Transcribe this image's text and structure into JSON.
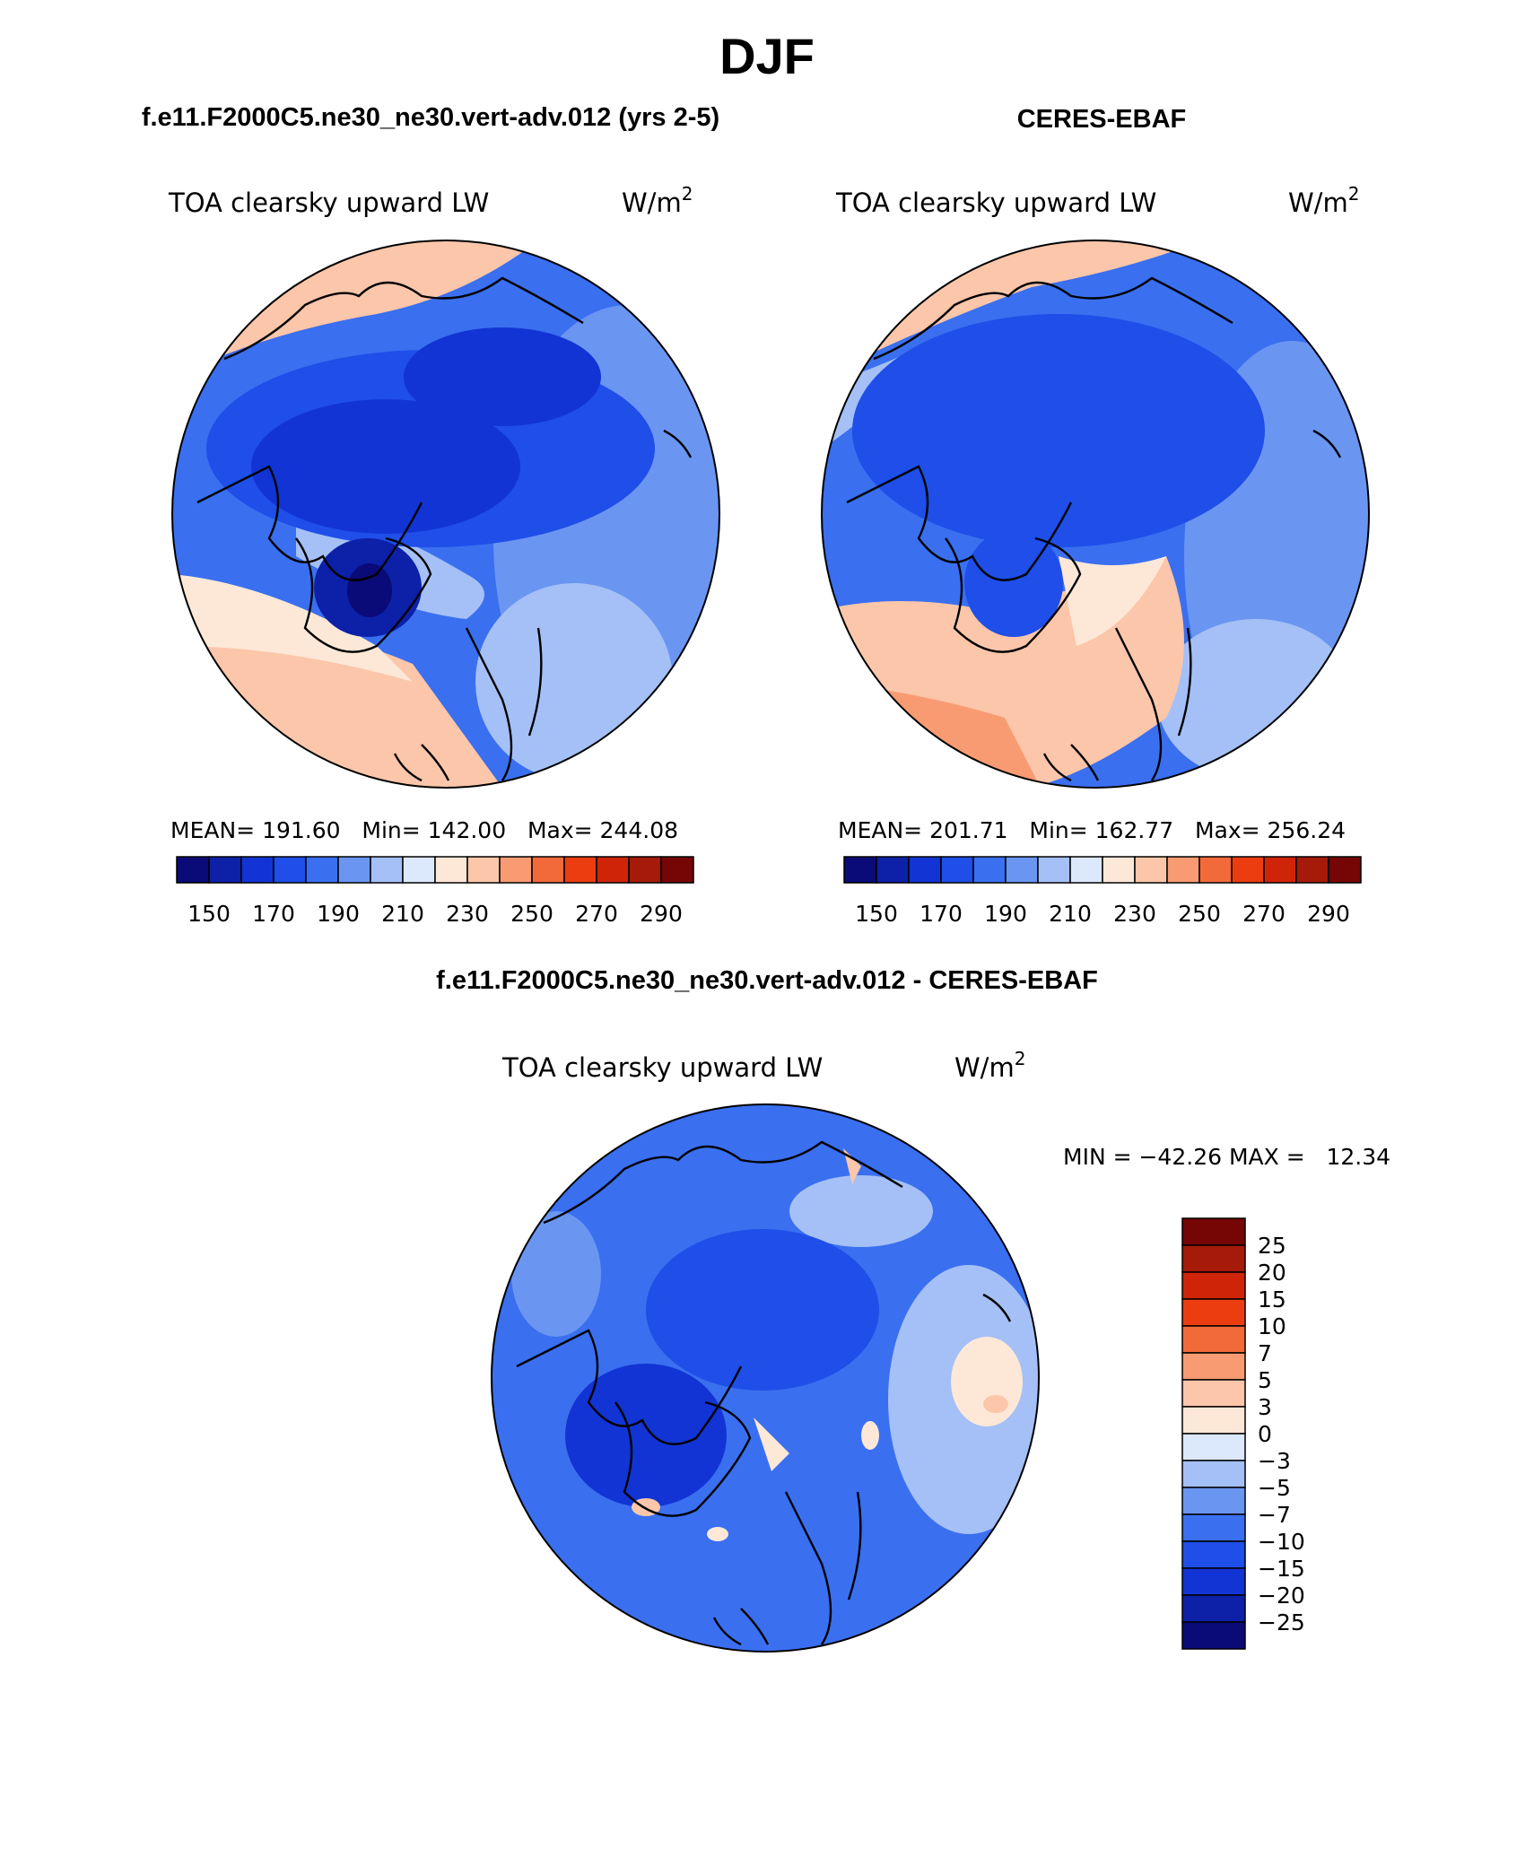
{
  "page": {
    "season": "DJF",
    "diff_title": "f.e11.F2000C5.ne30_ne30.vert-adv.012 - CERES-EBAF"
  },
  "panels": [
    {
      "id": "model",
      "header": "f.e11.F2000C5.ne30_ne30.vert-adv.012 (yrs 2-5)",
      "variable": "TOA clearsky upward LW",
      "units_base": "W/m",
      "units_exp": "2",
      "stats": "MEAN= 191.60   Min= 142.00   Max= 244.08"
    },
    {
      "id": "obs",
      "header": "CERES-EBAF",
      "variable": "TOA clearsky upward LW",
      "units_base": "W/m",
      "units_exp": "2",
      "stats": "MEAN= 201.71   Min= 162.77   Max= 256.24"
    },
    {
      "id": "diff",
      "variable": "TOA clearsky upward LW",
      "units_base": "W/m",
      "units_exp": "2",
      "stats": "MIN = −42.26 MAX =   12.34"
    }
  ],
  "abs_colorbar": {
    "colors": [
      "#0a0a78",
      "#0c20a8",
      "#1234d4",
      "#1f4ee8",
      "#3a6ff0",
      "#6a96f2",
      "#a4c0f6",
      "#dce8fb",
      "#fde8d8",
      "#fcc6aa",
      "#f89b72",
      "#f26a3a",
      "#ec3d10",
      "#d02408",
      "#a51a08",
      "#760505"
    ],
    "tick_labels": [
      "150",
      "170",
      "190",
      "210",
      "230",
      "250",
      "270",
      "290"
    ]
  },
  "diff_colorbar": {
    "colors": [
      "#760505",
      "#a51a08",
      "#d02408",
      "#ec3d10",
      "#f26a3a",
      "#f89b72",
      "#fcc6aa",
      "#fde8d8",
      "#dce8fb",
      "#a4c0f6",
      "#6a96f2",
      "#3a6ff0",
      "#1f4ee8",
      "#1234d4",
      "#0c20a8",
      "#0a0a78"
    ],
    "tick_labels": [
      "25",
      "20",
      "15",
      "10",
      "7",
      "5",
      "3",
      "0",
      "−3",
      "−5",
      "−7",
      "−10",
      "−15",
      "−20",
      "−25"
    ]
  },
  "chart_data": [
    {
      "type": "heatmap",
      "title": "f.e11.F2000C5.ne30_ne30.vert-adv.012 (yrs 2-5)",
      "variable": "TOA clearsky upward LW",
      "units": "W/m2",
      "season": "DJF",
      "projection": "north polar stereographic",
      "mean": 191.6,
      "min": 142.0,
      "max": 244.08,
      "levels": [
        150,
        160,
        170,
        180,
        190,
        200,
        210,
        220,
        230,
        240,
        250,
        260,
        270,
        280,
        290
      ]
    },
    {
      "type": "heatmap",
      "title": "CERES-EBAF",
      "variable": "TOA clearsky upward LW",
      "units": "W/m2",
      "season": "DJF",
      "projection": "north polar stereographic",
      "mean": 201.71,
      "min": 162.77,
      "max": 256.24,
      "levels": [
        150,
        160,
        170,
        180,
        190,
        200,
        210,
        220,
        230,
        240,
        250,
        260,
        270,
        280,
        290
      ]
    },
    {
      "type": "heatmap",
      "title": "f.e11.F2000C5.ne30_ne30.vert-adv.012 - CERES-EBAF",
      "variable": "TOA clearsky upward LW",
      "units": "W/m2",
      "season": "DJF",
      "projection": "north polar stereographic",
      "min": -42.26,
      "max": 12.34,
      "levels": [
        -25,
        -20,
        -15,
        -10,
        -7,
        -5,
        -3,
        0,
        3,
        5,
        7,
        10,
        15,
        20,
        25
      ]
    }
  ]
}
